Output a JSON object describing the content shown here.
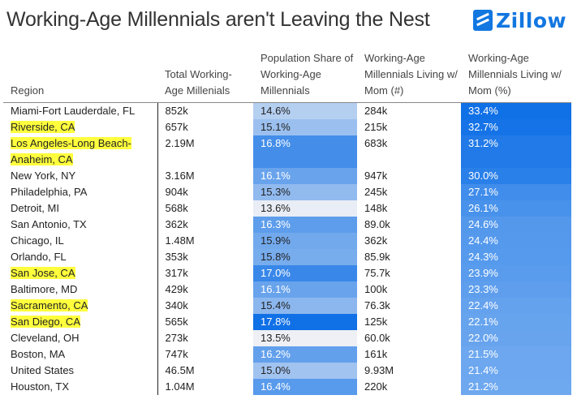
{
  "title": "Working-Age Millennials aren't Leaving the Nest",
  "logo": {
    "text": "Zillow",
    "icon": "zillow-logo-icon"
  },
  "chart_data": {
    "type": "table",
    "columns": [
      "Region",
      "Total Working-Age Millenials",
      "Population Share of Working-Age Millennials",
      "Working-Age Millennials Living w/ Mom (#)",
      "Working-Age Millennials Living w/ Mom (%)"
    ],
    "rows": [
      {
        "region": "Miami-Fort Lauderdale, FL",
        "total": "852k",
        "share": "14.6%",
        "count": "284k",
        "pct": "33.4%",
        "highlight": false
      },
      {
        "region": "Riverside, CA",
        "total": "657k",
        "share": "15.1%",
        "count": "215k",
        "pct": "32.7%",
        "highlight": true
      },
      {
        "region": "Los Angeles-Long Beach-Anaheim, CA",
        "total": "2.19M",
        "share": "16.8%",
        "count": "683k",
        "pct": "31.2%",
        "highlight": true
      },
      {
        "region": "New York, NY",
        "total": "3.16M",
        "share": "16.1%",
        "count": "947k",
        "pct": "30.0%",
        "highlight": false
      },
      {
        "region": "Philadelphia, PA",
        "total": "904k",
        "share": "15.3%",
        "count": "245k",
        "pct": "27.1%",
        "highlight": false
      },
      {
        "region": "Detroit, MI",
        "total": "568k",
        "share": "13.6%",
        "count": "148k",
        "pct": "26.1%",
        "highlight": false
      },
      {
        "region": "San Antonio, TX",
        "total": "362k",
        "share": "16.3%",
        "count": "89.0k",
        "pct": "24.6%",
        "highlight": false
      },
      {
        "region": "Chicago, IL",
        "total": "1.48M",
        "share": "15.9%",
        "count": "362k",
        "pct": "24.4%",
        "highlight": false
      },
      {
        "region": "Orlando, FL",
        "total": "353k",
        "share": "15.8%",
        "count": "85.9k",
        "pct": "24.3%",
        "highlight": false
      },
      {
        "region": "San Jose, CA",
        "total": "317k",
        "share": "17.0%",
        "count": "75.7k",
        "pct": "23.9%",
        "highlight": true
      },
      {
        "region": "Baltimore, MD",
        "total": "429k",
        "share": "16.1%",
        "count": "100k",
        "pct": "23.3%",
        "highlight": false
      },
      {
        "region": "Sacramento, CA",
        "total": "340k",
        "share": "15.4%",
        "count": "76.3k",
        "pct": "22.4%",
        "highlight": true
      },
      {
        "region": "San Diego, CA",
        "total": "565k",
        "share": "17.8%",
        "count": "125k",
        "pct": "22.1%",
        "highlight": true
      },
      {
        "region": "Cleveland, OH",
        "total": "273k",
        "share": "13.5%",
        "count": "60.0k",
        "pct": "22.0%",
        "highlight": false
      },
      {
        "region": "Boston, MA",
        "total": "747k",
        "share": "16.2%",
        "count": "161k",
        "pct": "21.5%",
        "highlight": false
      },
      {
        "region": "United States",
        "total": "46.5M",
        "share": "15.0%",
        "count": "9.93M",
        "pct": "21.4%",
        "highlight": false
      },
      {
        "region": "Houston, TX",
        "total": "1.04M",
        "share": "16.4%",
        "count": "220k",
        "pct": "21.2%",
        "highlight": false
      }
    ],
    "colors": {
      "share_low": "#eef0f5",
      "share_high": "#1070e6",
      "pct_low": "#6ea8ef",
      "pct_high": "#1070e6",
      "highlight": "#ffff3d"
    }
  }
}
